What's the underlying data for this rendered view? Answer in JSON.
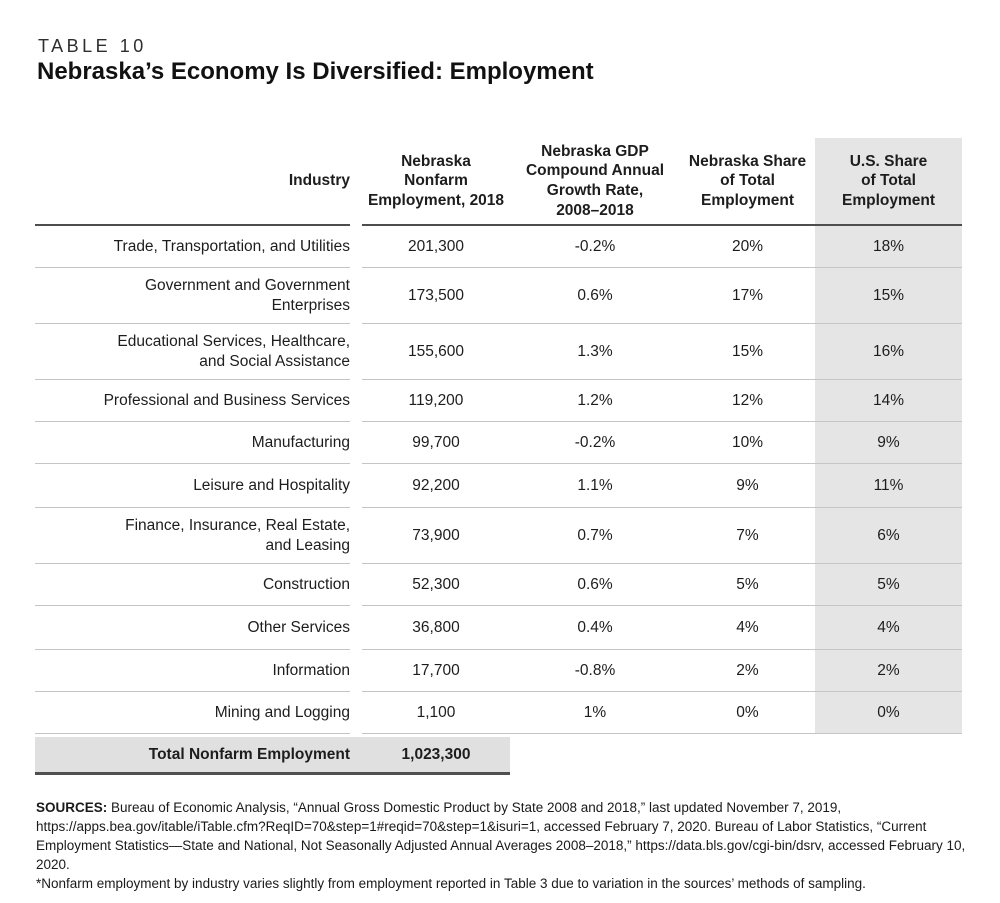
{
  "chart_data": {
    "type": "table",
    "table_label": "TABLE 10",
    "title": "Nebraska’s Economy Is Diversified: Employment",
    "columns": [
      "Industry",
      "Nebraska\nNonfarm\nEmployment, 2018",
      "Nebraska GDP\nCompound Annual\nGrowth Rate,\n2008–2018",
      "Nebraska Share\nof Total\nEmployment",
      "U.S. Share\nof Total\nEmployment"
    ],
    "rows": [
      {
        "industry": "Trade, Transportation, and Utilities",
        "employment": "201,300",
        "growth": "-0.2%",
        "ne_share": "20%",
        "us_share": "18%"
      },
      {
        "industry": "Government and Government\nEnterprises",
        "employment": "173,500",
        "growth": "0.6%",
        "ne_share": "17%",
        "us_share": "15%"
      },
      {
        "industry": "Educational Services, Healthcare,\nand Social Assistance",
        "employment": "155,600",
        "growth": "1.3%",
        "ne_share": "15%",
        "us_share": "16%"
      },
      {
        "industry": "Professional and Business Services",
        "employment": "119,200",
        "growth": "1.2%",
        "ne_share": "12%",
        "us_share": "14%"
      },
      {
        "industry": "Manufacturing",
        "employment": "99,700",
        "growth": "-0.2%",
        "ne_share": "10%",
        "us_share": "9%"
      },
      {
        "industry": "Leisure and Hospitality",
        "employment": "92,200",
        "growth": "1.1%",
        "ne_share": "9%",
        "us_share": "11%"
      },
      {
        "industry": "Finance, Insurance, Real Estate,\nand Leasing",
        "employment": "73,900",
        "growth": "0.7%",
        "ne_share": "7%",
        "us_share": "6%"
      },
      {
        "industry": "Construction",
        "employment": "52,300",
        "growth": "0.6%",
        "ne_share": "5%",
        "us_share": "5%"
      },
      {
        "industry": "Other Services",
        "employment": "36,800",
        "growth": "0.4%",
        "ne_share": "4%",
        "us_share": "4%"
      },
      {
        "industry": "Information",
        "employment": "17,700",
        "growth": "-0.8%",
        "ne_share": "2%",
        "us_share": "2%"
      },
      {
        "industry": "Mining and Logging",
        "employment": "1,100",
        "growth": "1%",
        "ne_share": "0%",
        "us_share": "0%"
      }
    ],
    "total_row": {
      "label": "Total Nonfarm Employment",
      "value": "1,023,300"
    },
    "layout": {
      "highlighted_column": "U.S. Share of Total Employment",
      "colors": {
        "column_shade": "#e5e5e5",
        "total_bar": "#e0e0e0",
        "rule_dark": "#4d4d4d",
        "rule_light": "#c5c5c5",
        "text": "#1d1d1d"
      }
    }
  },
  "footer": {
    "sources_label": "SOURCES:",
    "sources_text": " Bureau of Economic Analysis, “Annual Gross Domestic Product by State 2008 and 2018,” last updated November 7, 2019, https://apps.bea.gov/itable/iTable.cfm?ReqID=70&step=1#reqid=70&step=1&isuri=1, accessed February 7, 2020. Bureau of Labor Statistics, “Current Employment Statistics—State and National, Not Seasonally Adjusted Annual Averages 2008–2018,” https://data.bls.gov/cgi-bin/dsrv, accessed February 10, 2020.",
    "note": "*Nonfarm employment by industry varies slightly from employment reported in Table 3 due to variation in the sources’ methods of sampling."
  }
}
